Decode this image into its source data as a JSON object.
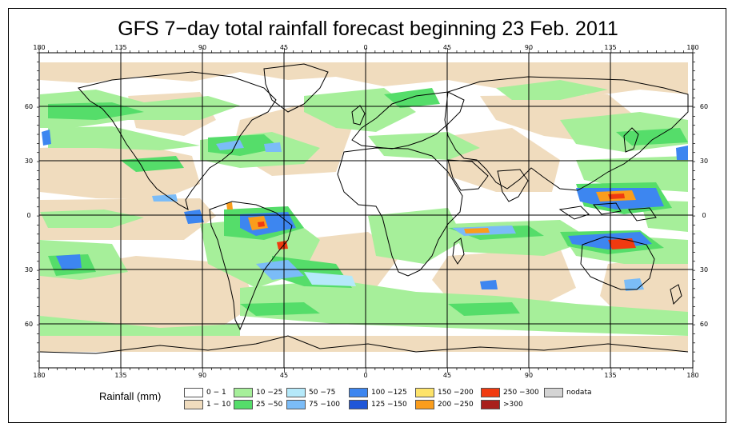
{
  "title": "GFS 7−day total rainfall forecast beginning 23 Feb. 2011",
  "axes": {
    "top_lon_labels": [
      "180",
      "135",
      "90",
      "45",
      "0",
      "45",
      "90",
      "135",
      "180"
    ],
    "bottom_lon_labels": [
      "180",
      "135",
      "90",
      "45",
      "0",
      "45",
      "90",
      "135",
      "180"
    ],
    "left_lat_labels": [
      "60",
      "30",
      "0",
      "30",
      "60"
    ],
    "right_lat_labels": [
      "60",
      "30",
      "0",
      "30",
      "60"
    ]
  },
  "legend": {
    "title": "Rainfall (mm)",
    "items": [
      {
        "label": "0 − 1",
        "color": "#ffffff"
      },
      {
        "label": "1 − 10",
        "color": "#f0dcbe"
      },
      {
        "label": "10 −25",
        "color": "#a6ef9a"
      },
      {
        "label": "25 −50",
        "color": "#55dd6a"
      },
      {
        "label": "50 −75",
        "color": "#b5e9fa"
      },
      {
        "label": "75 −100",
        "color": "#7bbcf7"
      },
      {
        "label": "100 −125",
        "color": "#3d86f0"
      },
      {
        "label": "125 −150",
        "color": "#1f56d8"
      },
      {
        "label": "150 −200",
        "color": "#fde36a"
      },
      {
        "label": "200 −250",
        "color": "#fa9d1c"
      },
      {
        "label": "250 −300",
        "color": "#f03a10"
      },
      {
        "label": ">300",
        "color": "#a8201c"
      },
      {
        "label": "nodata",
        "color": "#d4d4d4"
      }
    ]
  },
  "colors": {
    "land_line": "#000000",
    "grid": "#000000",
    "tan": "#f0dcbe",
    "green_light": "#a6ef9a",
    "green": "#55dd6a",
    "blue_light": "#b5e9fa",
    "blue": "#3d86f0",
    "red": "#f03a10",
    "orange": "#fa9d1c"
  }
}
